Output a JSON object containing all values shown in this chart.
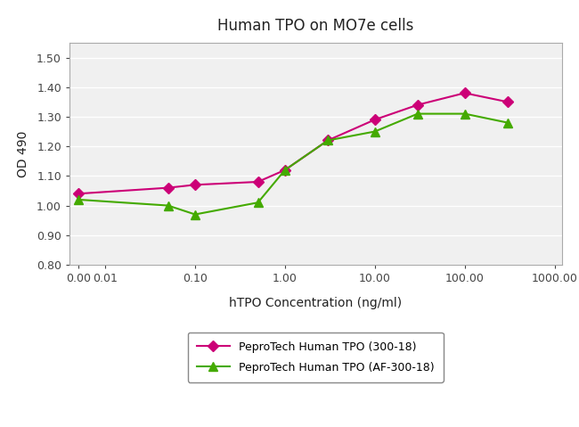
{
  "title": "Human TPO on MO7e cells",
  "xlabel": "hTPO Concentration (ng/ml)",
  "ylabel": "OD 490",
  "ylim": [
    0.8,
    1.55
  ],
  "yticks": [
    0.8,
    0.9,
    1.0,
    1.1,
    1.2,
    1.3,
    1.4,
    1.5
  ],
  "series1": {
    "label": "PeproTech Human TPO (300-18)",
    "color": "#cc0077",
    "marker": "D",
    "x": [
      0.005,
      0.05,
      0.1,
      0.5,
      1.0,
      3.0,
      10.0,
      30.0,
      100.0,
      300.0
    ],
    "y": [
      1.04,
      1.06,
      1.07,
      1.08,
      1.12,
      1.22,
      1.29,
      1.34,
      1.38,
      1.35
    ]
  },
  "series2": {
    "label": "PeproTech Human TPO (AF-300-18)",
    "color": "#44aa00",
    "marker": "^",
    "x": [
      0.005,
      0.05,
      0.1,
      0.5,
      1.0,
      3.0,
      10.0,
      30.0,
      100.0,
      300.0
    ],
    "y": [
      1.02,
      1.0,
      0.97,
      1.01,
      1.12,
      1.22,
      1.25,
      1.31,
      1.31,
      1.28
    ]
  },
  "xtick_positions": [
    0.005,
    0.01,
    0.1,
    1.0,
    10.0,
    100.0,
    1000.0
  ],
  "xtick_labels": [
    "0.00",
    "0.01",
    "0.10",
    "1.00",
    "10.00",
    "100.00",
    "1000.00"
  ],
  "xlim_left": 0.004,
  "xlim_right": 1200.0,
  "background_color": "#ffffff",
  "plot_bg_color": "#f0f0f0",
  "grid_color": "#ffffff",
  "title_fontsize": 12,
  "label_fontsize": 10,
  "tick_fontsize": 9,
  "legend_fontsize": 9
}
